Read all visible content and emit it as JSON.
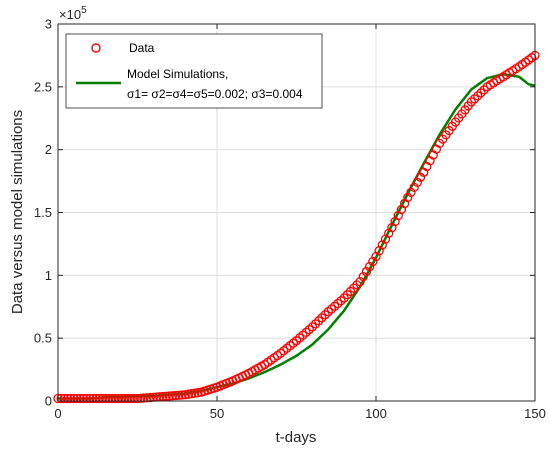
{
  "chart_data": {
    "type": "scatter",
    "title": "",
    "xlabel": "t-days",
    "ylabel": "Data versus model simulations",
    "xlim": [
      0,
      150
    ],
    "ylim": [
      0,
      3
    ],
    "y_multiplier_label": "×10",
    "y_multiplier_exponent": "5",
    "x_ticks": [
      0,
      50,
      100,
      150
    ],
    "y_ticks": [
      0,
      0.5,
      1,
      1.5,
      2,
      2.5,
      3
    ],
    "x_tick_labels": [
      "0",
      "50",
      "100",
      "150"
    ],
    "y_tick_labels": [
      "0",
      "0.5",
      "1",
      "1.5",
      "2",
      "2.5",
      "3"
    ],
    "grid": true,
    "legend_position": "top-left",
    "series": [
      {
        "name": "Data",
        "kind": "markers",
        "marker": "circle-open",
        "color": "#ff0000",
        "x": [
          0,
          5,
          10,
          15,
          20,
          25,
          30,
          35,
          40,
          45,
          50,
          55,
          60,
          65,
          70,
          75,
          80,
          85,
          90,
          95,
          100,
          105,
          110,
          115,
          120,
          125,
          130,
          135,
          140,
          145,
          150
        ],
        "y": [
          0.02,
          0.02,
          0.02,
          0.02,
          0.02,
          0.02,
          0.03,
          0.04,
          0.05,
          0.07,
          0.11,
          0.16,
          0.22,
          0.29,
          0.38,
          0.48,
          0.59,
          0.71,
          0.82,
          0.95,
          1.15,
          1.38,
          1.62,
          1.82,
          2.05,
          2.22,
          2.38,
          2.5,
          2.58,
          2.66,
          2.75
        ]
      },
      {
        "name": "Model Simulations,",
        "name_line2": "σ1= σ2=σ4=σ5=0.002; σ3=0.004",
        "kind": "line",
        "color": "#007f00",
        "x": [
          0,
          5,
          10,
          15,
          20,
          25,
          30,
          35,
          40,
          45,
          50,
          55,
          60,
          65,
          70,
          75,
          80,
          85,
          90,
          95,
          100,
          105,
          110,
          115,
          120,
          125,
          130,
          135,
          140,
          145,
          148,
          150
        ],
        "y": [
          0.02,
          0.02,
          0.02,
          0.03,
          0.03,
          0.04,
          0.04,
          0.05,
          0.06,
          0.08,
          0.11,
          0.14,
          0.18,
          0.23,
          0.29,
          0.36,
          0.45,
          0.57,
          0.72,
          0.91,
          1.14,
          1.4,
          1.65,
          1.89,
          2.12,
          2.32,
          2.48,
          2.57,
          2.6,
          2.58,
          2.52,
          2.51
        ]
      }
    ]
  }
}
